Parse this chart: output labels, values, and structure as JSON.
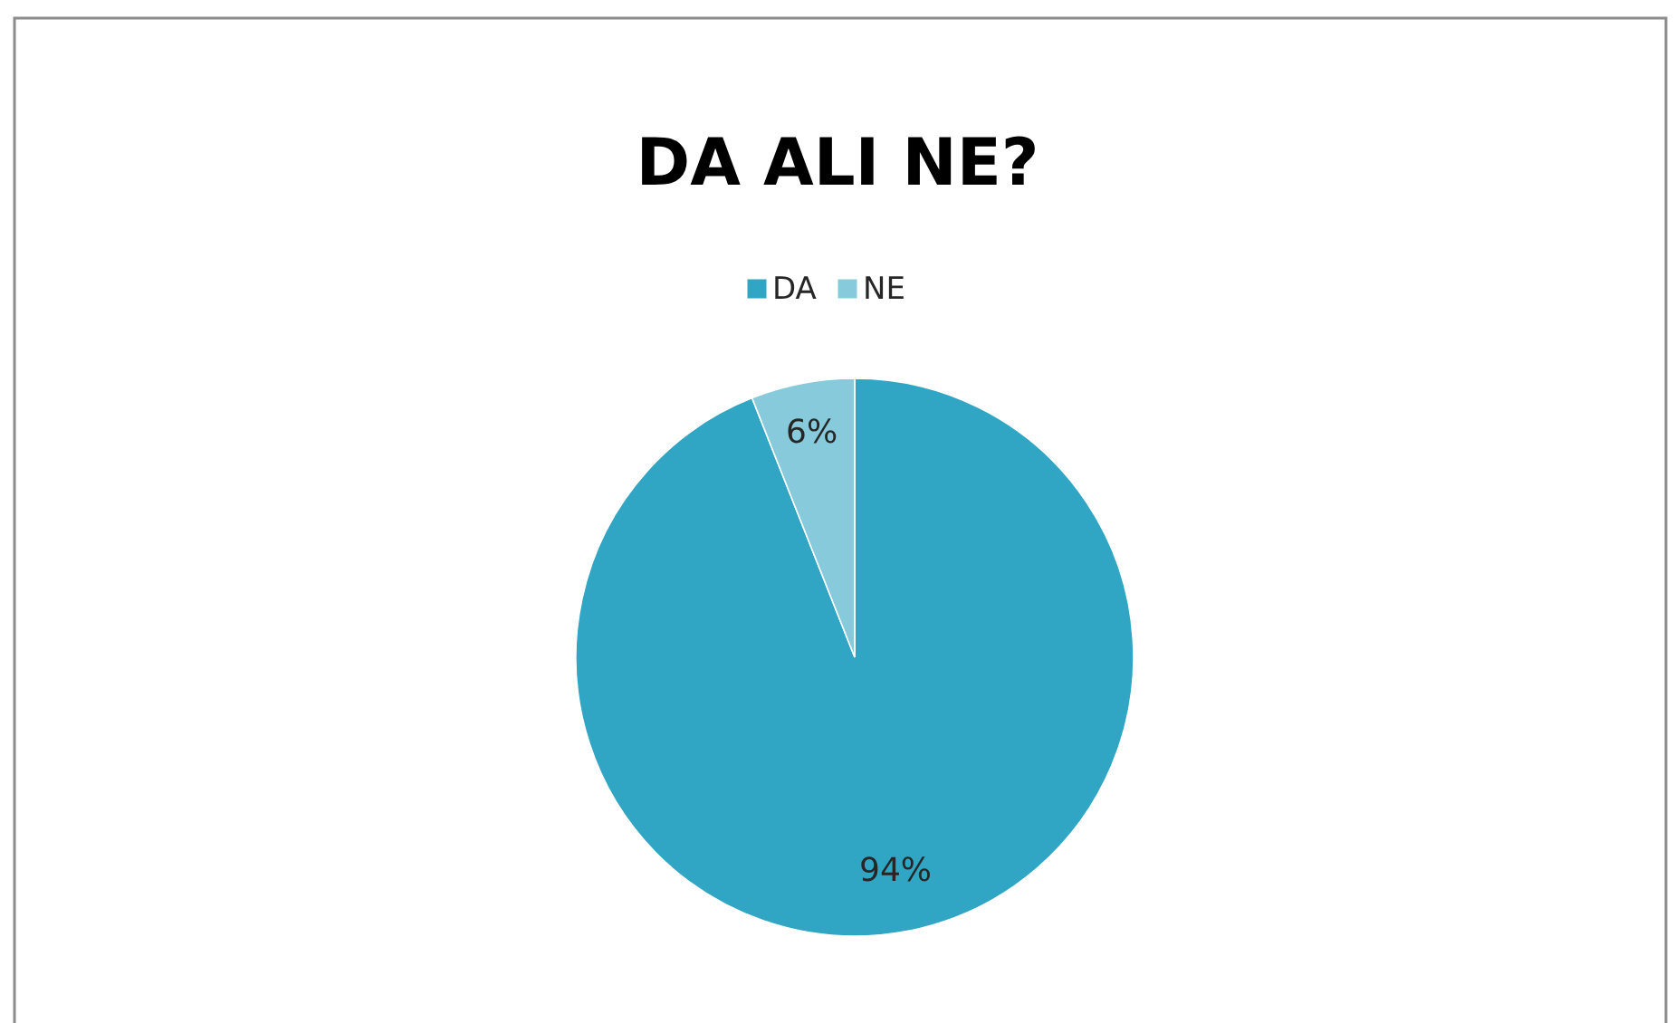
{
  "chart_data": {
    "type": "pie",
    "title": "DA ALI NE?",
    "categories": [
      "DA",
      "NE"
    ],
    "values": [
      94,
      6
    ],
    "colors": [
      "#31a6c4",
      "#86cadc"
    ],
    "value_labels": [
      "94%",
      "6%"
    ],
    "legend": "top"
  }
}
